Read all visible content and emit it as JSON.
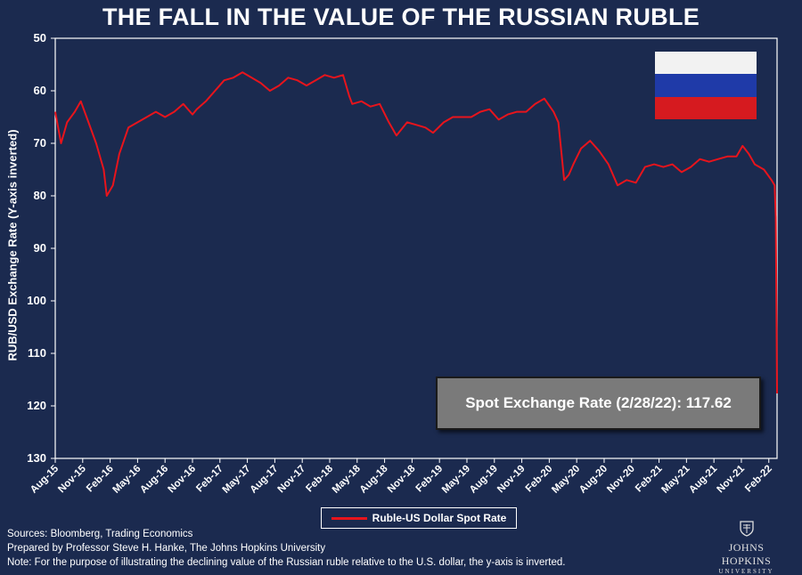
{
  "chart_data": {
    "type": "line",
    "title": "THE FALL IN THE VALUE OF THE RUSSIAN RUBLE",
    "ylabel": "RUB/USD Exchange Rate (Y-axis inverted)",
    "xlabel": "",
    "ylim": [
      50,
      130
    ],
    "y_inverted": true,
    "y_ticks": [
      50,
      60,
      70,
      80,
      90,
      100,
      110,
      120,
      130
    ],
    "x_ticks": [
      "Aug-15",
      "Nov-15",
      "Feb-16",
      "May-16",
      "Aug-16",
      "Nov-16",
      "Feb-17",
      "May-17",
      "Aug-17",
      "Nov-17",
      "Feb-18",
      "May-18",
      "Aug-18",
      "Nov-18",
      "Feb-19",
      "May-19",
      "Aug-19",
      "Nov-19",
      "Feb-20",
      "May-20",
      "Aug-20",
      "Nov-20",
      "Feb-21",
      "May-21",
      "Aug-21",
      "Nov-21",
      "Feb-22"
    ],
    "legend_position": "bottom",
    "grid": false,
    "series": [
      {
        "name": "Ruble-US Dollar Spot Rate",
        "color": "#e8141c",
        "x": [
          "2015-08-01",
          "2015-08-20",
          "2015-09-10",
          "2015-10-05",
          "2015-10-25",
          "2015-11-20",
          "2015-12-15",
          "2016-01-10",
          "2016-01-20",
          "2016-02-10",
          "2016-03-01",
          "2016-04-01",
          "2016-05-01",
          "2016-06-01",
          "2016-07-01",
          "2016-08-01",
          "2016-09-01",
          "2016-10-01",
          "2016-11-01",
          "2016-11-15",
          "2016-12-15",
          "2017-01-15",
          "2017-02-15",
          "2017-03-15",
          "2017-04-15",
          "2017-05-15",
          "2017-06-15",
          "2017-07-15",
          "2017-08-15",
          "2017-09-15",
          "2017-10-15",
          "2017-11-15",
          "2017-12-15",
          "2018-01-15",
          "2018-02-15",
          "2018-03-15",
          "2018-04-05",
          "2018-04-15",
          "2018-05-15",
          "2018-06-15",
          "2018-07-15",
          "2018-08-15",
          "2018-09-10",
          "2018-10-15",
          "2018-11-15",
          "2018-12-15",
          "2019-01-10",
          "2019-02-15",
          "2019-03-15",
          "2019-04-15",
          "2019-05-15",
          "2019-06-15",
          "2019-07-15",
          "2019-08-15",
          "2019-09-15",
          "2019-10-15",
          "2019-11-15",
          "2019-12-15",
          "2020-01-15",
          "2020-02-15",
          "2020-03-01",
          "2020-03-20",
          "2020-04-05",
          "2020-04-20",
          "2020-05-15",
          "2020-06-15",
          "2020-07-15",
          "2020-08-15",
          "2020-09-15",
          "2020-10-15",
          "2020-11-15",
          "2020-12-15",
          "2021-01-15",
          "2021-02-15",
          "2021-03-15",
          "2021-04-15",
          "2021-05-15",
          "2021-06-15",
          "2021-07-15",
          "2021-08-15",
          "2021-09-15",
          "2021-10-15",
          "2021-11-05",
          "2021-11-25",
          "2021-12-15",
          "2022-01-15",
          "2022-02-10",
          "2022-02-20",
          "2022-02-24",
          "2022-02-28"
        ],
        "values": [
          64.0,
          70.0,
          66.0,
          64.0,
          62.0,
          66.0,
          70.0,
          75.0,
          80.0,
          78.0,
          72.0,
          67.0,
          66.0,
          65.0,
          64.0,
          65.0,
          64.0,
          62.5,
          64.5,
          63.5,
          62.0,
          60.0,
          58.0,
          57.5,
          56.5,
          57.5,
          58.5,
          60.0,
          59.0,
          57.5,
          58.0,
          59.0,
          58.0,
          57.0,
          57.5,
          57.0,
          61.0,
          62.5,
          62.0,
          63.0,
          62.5,
          66.0,
          68.5,
          66.0,
          66.5,
          67.0,
          68.0,
          66.0,
          65.0,
          65.0,
          65.0,
          64.0,
          63.5,
          65.5,
          64.5,
          64.0,
          64.0,
          62.5,
          61.5,
          64.0,
          66.0,
          77.0,
          76.0,
          74.0,
          71.0,
          69.5,
          71.5,
          74.0,
          78.0,
          77.0,
          77.5,
          74.5,
          74.0,
          74.5,
          74.0,
          75.5,
          74.5,
          73.0,
          73.5,
          73.0,
          72.5,
          72.5,
          70.5,
          72.0,
          74.0,
          75.0,
          77.0,
          78.0,
          84.0,
          117.62
        ]
      }
    ],
    "annotation": "Spot Exchange Rate (2/28/22): 117.62"
  },
  "flag": {
    "colors": [
      "#f2f2f2",
      "#1f3aa8",
      "#d61a1f"
    ]
  },
  "legend": {
    "label": "Ruble-US Dollar Spot Rate"
  },
  "footer": {
    "sources": "Sources: Bloomberg, Trading Economics",
    "prepared": "Prepared by Professor Steve H. Hanke, The Johns Hopkins University",
    "note": "Note: For the purpose of illustrating the declining value of the Russian ruble relative to the U.S. dollar, the y-axis is inverted."
  },
  "logo": {
    "name": "JOHNS HOPKINS",
    "sub": "UNIVERSITY"
  }
}
